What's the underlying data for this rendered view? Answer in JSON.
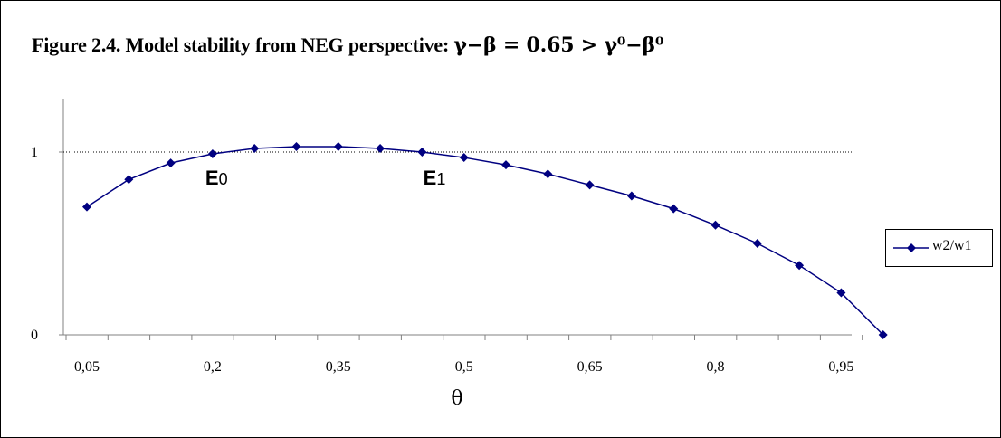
{
  "title": {
    "prefix": "Figure 2.4. Model stability from NEG perspective: ",
    "formula": "γ−β = 0.65 > γ⁰−β⁰"
  },
  "chart_data": {
    "type": "line",
    "xlabel": "θ",
    "ylabel": "",
    "x_tick_labels": [
      "0,05",
      "0,2",
      "0,35",
      "0,5",
      "0,65",
      "0,8",
      "0,95"
    ],
    "y_tick_labels": [
      "0",
      "1"
    ],
    "ylim": [
      0,
      1.3
    ],
    "reference_line": {
      "y": 1,
      "style": "dotted"
    },
    "series": [
      {
        "name": "w2/w1",
        "color": "#000080",
        "marker": "diamond",
        "x": [
          0.05,
          0.1,
          0.15,
          0.2,
          0.25,
          0.3,
          0.35,
          0.4,
          0.45,
          0.5,
          0.55,
          0.6,
          0.65,
          0.7,
          0.75,
          0.8,
          0.85,
          0.9,
          0.95,
          1.0
        ],
        "values": [
          0.7,
          0.85,
          0.94,
          0.99,
          1.02,
          1.03,
          1.03,
          1.02,
          1.0,
          0.97,
          0.93,
          0.88,
          0.82,
          0.76,
          0.69,
          0.6,
          0.5,
          0.38,
          0.23,
          0.0
        ]
      }
    ],
    "annotations": [
      {
        "main": "E",
        "sub": "0",
        "x": 0.2,
        "y": 0.95
      },
      {
        "main": "E",
        "sub": "1",
        "x": 0.46,
        "y": 0.95
      }
    ],
    "legend": {
      "position": "right",
      "label": "w2/w1"
    }
  }
}
